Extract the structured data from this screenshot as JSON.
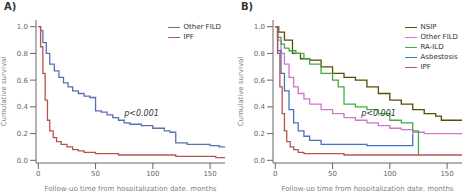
{
  "chart_data": [
    {
      "type": "line",
      "line_style": "step",
      "title": "A)",
      "x_label": "Follow-up time from hospitalization date, months",
      "y_label": "Cumulative survival",
      "xlim": [
        -2,
        163
      ],
      "ylim": [
        -0.02,
        1.05
      ],
      "xticks": [
        0,
        50,
        100,
        150
      ],
      "yticks": [
        {
          "value": 0.0,
          "label": "0.0"
        },
        0.2,
        0.4,
        0.6,
        0.8,
        {
          "value": 1.0,
          "label": "1.0"
        }
      ],
      "legend": "upper right",
      "annotations": [
        {
          "text": "p<0.001",
          "x": 75,
          "y": 0.35
        }
      ],
      "series": [
        {
          "name": "Other FILD",
          "color": "#5B6EAF",
          "x": [
            0,
            2,
            4,
            7,
            10,
            14,
            18,
            22,
            26,
            30,
            35,
            40,
            45,
            50,
            55,
            60,
            65,
            70,
            75,
            80,
            90,
            100,
            110,
            115,
            120,
            130,
            140,
            150,
            158,
            163
          ],
          "values": [
            1.0,
            0.97,
            0.88,
            0.8,
            0.72,
            0.67,
            0.62,
            0.58,
            0.55,
            0.52,
            0.5,
            0.48,
            0.47,
            0.37,
            0.36,
            0.34,
            0.32,
            0.3,
            0.28,
            0.27,
            0.26,
            0.24,
            0.22,
            0.21,
            0.13,
            0.12,
            0.12,
            0.11,
            0.1,
            0.1
          ]
        },
        {
          "name": "IPF",
          "color": "#B85450",
          "x": [
            0,
            2,
            4,
            6,
            8,
            10,
            13,
            16,
            20,
            25,
            30,
            35,
            40,
            50,
            60,
            70,
            80,
            100,
            120,
            140,
            155,
            163
          ],
          "values": [
            1.0,
            0.85,
            0.65,
            0.45,
            0.3,
            0.22,
            0.17,
            0.14,
            0.12,
            0.1,
            0.08,
            0.07,
            0.06,
            0.05,
            0.05,
            0.04,
            0.04,
            0.04,
            0.03,
            0.03,
            0.02,
            0.02
          ]
        }
      ]
    },
    {
      "type": "line",
      "line_style": "step",
      "title": "B)",
      "x_label": "Follow-up time from hospitalization date, months",
      "y_label": "Cumulative survival",
      "xlim": [
        -2,
        163
      ],
      "ylim": [
        -0.02,
        1.05
      ],
      "xticks": [
        0,
        50,
        100,
        150
      ],
      "yticks": [
        {
          "value": 0.0,
          "label": "0.0"
        },
        0.2,
        0.4,
        0.6,
        0.8,
        {
          "value": 1.0,
          "label": "1.0"
        }
      ],
      "legend": "upper right",
      "annotations": [
        {
          "text": "p<0.001",
          "x": 75,
          "y": 0.35
        }
      ],
      "series": [
        {
          "name": "NSIP",
          "color": "#5C4A00",
          "x": [
            0,
            3,
            8,
            15,
            22,
            30,
            40,
            50,
            60,
            70,
            80,
            90,
            100,
            110,
            120,
            130,
            140,
            145,
            163
          ],
          "values": [
            1.0,
            0.96,
            0.9,
            0.8,
            0.76,
            0.75,
            0.7,
            0.65,
            0.62,
            0.6,
            0.55,
            0.5,
            0.45,
            0.42,
            0.38,
            0.35,
            0.33,
            0.3,
            0.3
          ]
        },
        {
          "name": "Other FILD",
          "color": "#CC77CC",
          "x": [
            0,
            2,
            5,
            8,
            12,
            16,
            20,
            25,
            30,
            40,
            50,
            60,
            70,
            80,
            90,
            100,
            110,
            120,
            130,
            140,
            150,
            163
          ],
          "values": [
            1.0,
            0.9,
            0.8,
            0.72,
            0.62,
            0.55,
            0.5,
            0.46,
            0.42,
            0.38,
            0.35,
            0.32,
            0.3,
            0.28,
            0.26,
            0.24,
            0.23,
            0.21,
            0.2,
            0.2,
            0.2,
            0.2
          ]
        },
        {
          "name": "RA-ILD",
          "color": "#44AA44",
          "x": [
            0,
            2,
            5,
            8,
            12,
            18,
            25,
            30,
            40,
            50,
            55,
            60,
            70,
            80,
            90,
            100,
            110,
            120,
            125
          ],
          "values": [
            1.0,
            0.92,
            0.87,
            0.84,
            0.82,
            0.8,
            0.76,
            0.72,
            0.65,
            0.6,
            0.55,
            0.42,
            0.4,
            0.38,
            0.35,
            0.3,
            0.28,
            0.22,
            0.04
          ]
        },
        {
          "name": "Asbestosis",
          "color": "#4472C4",
          "x": [
            0,
            2,
            5,
            8,
            12,
            16,
            20,
            25,
            30,
            40,
            50,
            60,
            70,
            80,
            90,
            100,
            110,
            120
          ],
          "values": [
            1.0,
            0.82,
            0.65,
            0.52,
            0.38,
            0.28,
            0.22,
            0.18,
            0.15,
            0.12,
            0.12,
            0.12,
            0.12,
            0.11,
            0.11,
            0.11,
            0.11,
            0.2
          ]
        },
        {
          "name": "IPF",
          "color": "#B85450",
          "x": [
            0,
            2,
            4,
            6,
            8,
            10,
            13,
            16,
            20,
            25,
            30,
            40,
            50,
            60,
            80,
            100,
            120,
            150,
            163
          ],
          "values": [
            1.0,
            0.8,
            0.55,
            0.35,
            0.22,
            0.14,
            0.1,
            0.08,
            0.06,
            0.05,
            0.05,
            0.05,
            0.05,
            0.04,
            0.04,
            0.04,
            0.04,
            0.04,
            0.04
          ]
        }
      ]
    }
  ]
}
